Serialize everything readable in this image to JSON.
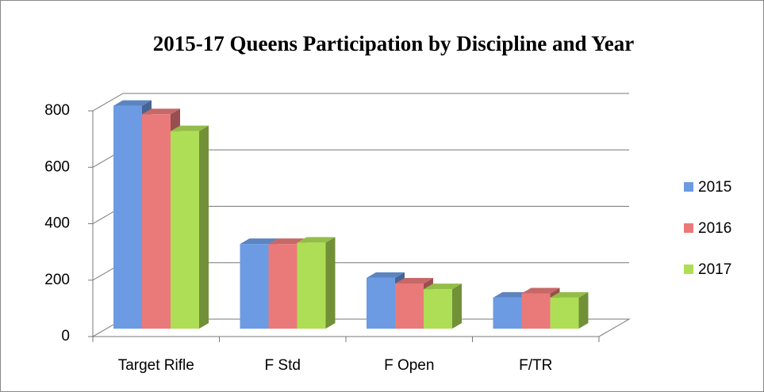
{
  "chart_data": {
    "type": "bar3d",
    "title": "2015-17 Queens Participation by Discipline and Year",
    "categories": [
      "Target Rifle",
      "F Std",
      "F Open",
      "F/TR"
    ],
    "series": [
      {
        "name": "2015",
        "color": "#6c9be3",
        "values": [
          790,
          300,
          180,
          110
        ]
      },
      {
        "name": "2016",
        "color": "#ea7a7a",
        "values": [
          760,
          300,
          160,
          125
        ]
      },
      {
        "name": "2017",
        "color": "#aede55",
        "values": [
          700,
          305,
          140,
          110
        ]
      }
    ],
    "ylim": [
      0,
      800
    ],
    "yticks": [
      0,
      200,
      400,
      600,
      800
    ],
    "grid": true,
    "legend": "right"
  }
}
